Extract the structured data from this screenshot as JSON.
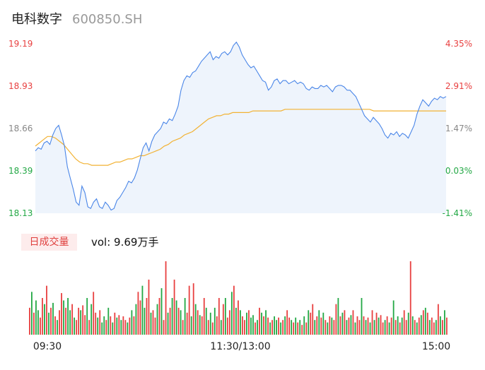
{
  "header": {
    "name": "电科数字",
    "code": "600850.SH"
  },
  "volume_panel": {
    "tab_label": "日成交量",
    "vol_label": "vol: 9.69万手"
  },
  "colors": {
    "price_line": "#4a86e8",
    "avg_line": "#f2b233",
    "up": "#e84040",
    "down": "#23a845",
    "neutral_label": "#888888",
    "area_fill": "#eef4fc"
  },
  "chart_data": [
    {
      "type": "line",
      "title": "",
      "prev_close": 18.445,
      "price_ticks": [
        "19.19",
        "18.93",
        "18.66",
        "18.39",
        "18.13"
      ],
      "pct_ticks": [
        "4.35%",
        "2.91%",
        "1.47%",
        "0.03%",
        "-1.41%"
      ],
      "ylim": [
        18.13,
        19.19
      ],
      "x_labels": [
        "09:30",
        "11:30/13:00",
        "15:00"
      ],
      "series": [
        {
          "values": [
            18.52,
            18.54,
            18.53,
            18.57,
            18.58,
            18.56,
            18.62,
            18.66,
            18.68,
            18.62,
            18.55,
            18.42,
            18.35,
            18.28,
            18.2,
            18.18,
            18.3,
            18.26,
            18.17,
            18.16,
            18.2,
            18.22,
            18.17,
            18.16,
            18.2,
            18.18,
            18.15,
            18.16,
            18.21,
            18.23,
            18.26,
            18.29,
            18.33,
            18.32,
            18.35,
            18.4,
            18.47,
            18.54,
            18.57,
            18.52,
            18.58,
            18.62,
            18.64,
            18.66,
            18.7,
            18.69,
            18.72,
            18.71,
            18.75,
            18.8,
            18.9,
            18.96,
            18.99,
            18.98,
            19.01,
            19.02,
            19.05,
            19.08,
            19.1,
            19.12,
            19.14,
            19.09,
            19.11,
            19.1,
            19.13,
            19.14,
            19.12,
            19.14,
            19.18,
            19.2,
            19.17,
            19.12,
            19.09,
            19.06,
            19.04,
            19.05,
            19.02,
            18.99,
            18.96,
            18.95,
            18.9,
            18.92,
            18.96,
            18.97,
            18.94,
            18.96,
            18.96,
            18.94,
            18.95,
            18.96,
            18.94,
            18.95,
            18.94,
            18.91,
            18.9,
            18.92,
            18.91,
            18.91,
            18.93,
            18.92,
            18.93,
            18.91,
            18.89,
            18.92,
            18.93,
            18.93,
            18.92,
            18.9,
            18.9,
            18.88,
            18.86,
            18.82,
            18.78,
            18.74,
            18.72,
            18.7,
            18.73,
            18.71,
            18.69,
            18.66,
            18.62,
            18.6,
            18.63,
            18.62,
            18.64,
            18.61,
            18.63,
            18.62,
            18.6,
            18.64,
            18.68,
            18.75,
            18.8,
            18.84,
            18.82,
            18.8,
            18.83,
            18.85,
            18.84,
            18.86,
            18.85,
            18.86
          ]
        },
        {
          "values": [
            18.55,
            18.57,
            18.59,
            18.61,
            18.61,
            18.6,
            18.58,
            18.56,
            18.53,
            18.5,
            18.47,
            18.45,
            18.44,
            18.44,
            18.43,
            18.43,
            18.43,
            18.43,
            18.43,
            18.44,
            18.45,
            18.45,
            18.46,
            18.47,
            18.47,
            18.48,
            18.49,
            18.49,
            18.5,
            18.51,
            18.52,
            18.53,
            18.55,
            18.56,
            18.58,
            18.59,
            18.6,
            18.62,
            18.63,
            18.64,
            18.66,
            18.68,
            18.7,
            18.72,
            18.73,
            18.74,
            18.74,
            18.75,
            18.75,
            18.76,
            18.76,
            18.76,
            18.76,
            18.76,
            18.77,
            18.77,
            18.77,
            18.77,
            18.77,
            18.77,
            18.77,
            18.77,
            18.78,
            18.78,
            18.78,
            18.78,
            18.78,
            18.78,
            18.78,
            18.78,
            18.78,
            18.78,
            18.78,
            18.78,
            18.78,
            18.78,
            18.78,
            18.78,
            18.78,
            18.78,
            18.78,
            18.78,
            18.78,
            18.78,
            18.77,
            18.77,
            18.77,
            18.77,
            18.77,
            18.77,
            18.77,
            18.77,
            18.77,
            18.77,
            18.77,
            18.77,
            18.77,
            18.77,
            18.77,
            18.77,
            18.77,
            18.77,
            18.77
          ]
        }
      ]
    },
    {
      "type": "bar",
      "title": "",
      "values": [
        22,
        35,
        18,
        28,
        20,
        14,
        30,
        25,
        40,
        18,
        22,
        26,
        15,
        12,
        20,
        34,
        28,
        22,
        30,
        20,
        25,
        14,
        12,
        22,
        20,
        24,
        16,
        30,
        12,
        25,
        35,
        18,
        14,
        20,
        10,
        15,
        12,
        22,
        15,
        10,
        18,
        14,
        16,
        12,
        15,
        12,
        10,
        14,
        20,
        15,
        25,
        35,
        28,
        40,
        22,
        30,
        45,
        18,
        20,
        14,
        25,
        30,
        38,
        12,
        60,
        18,
        22,
        30,
        45,
        28,
        22,
        20,
        12,
        30,
        18,
        40,
        15,
        42,
        25,
        20,
        16,
        15,
        30,
        22,
        12,
        18,
        10,
        22,
        15,
        30,
        12,
        25,
        30,
        14,
        20,
        35,
        40,
        22,
        28,
        20,
        15,
        12,
        18,
        20,
        14,
        16,
        10,
        12,
        22,
        18,
        15,
        20,
        14,
        10,
        12,
        15,
        12,
        14,
        10,
        12,
        15,
        20,
        14,
        12,
        10,
        14,
        10,
        12,
        8,
        15,
        10,
        20,
        18,
        25,
        12,
        15,
        20,
        14,
        18,
        12,
        10,
        15,
        14,
        12,
        25,
        30,
        15,
        18,
        20,
        12,
        14,
        16,
        20,
        10,
        15,
        12,
        30,
        15,
        12,
        14,
        10,
        20,
        12,
        18,
        14,
        16,
        10,
        12,
        15,
        10,
        14,
        28,
        12,
        15,
        10,
        14,
        20,
        12,
        18,
        60,
        15,
        12,
        10,
        14,
        16,
        20,
        22,
        18,
        12,
        14,
        10,
        12,
        25,
        15,
        12,
        20,
        14
      ],
      "up_flags": [
        1,
        0,
        1,
        0,
        0,
        1,
        1,
        0,
        1,
        0,
        1,
        0,
        1,
        0,
        1,
        1,
        0,
        1,
        0,
        0,
        1,
        0,
        1,
        1,
        0,
        1,
        1,
        0,
        1,
        0,
        1,
        1,
        0,
        1,
        0,
        0,
        1,
        0,
        1,
        0,
        1,
        0,
        1,
        0,
        1,
        1,
        0,
        1,
        0,
        1,
        0,
        1,
        1,
        0,
        0,
        1,
        1,
        0,
        1,
        1,
        0,
        1,
        0,
        1,
        1,
        0,
        1,
        0,
        1,
        0,
        1,
        0,
        1,
        0,
        1,
        1,
        0,
        1,
        0,
        1,
        0,
        1,
        1,
        0,
        1,
        0,
        1,
        0,
        1,
        1,
        0,
        1,
        0,
        1,
        1,
        0,
        1,
        0,
        1,
        0,
        1,
        1,
        0,
        1,
        0,
        0,
        1,
        0,
        1,
        0,
        1,
        0,
        1,
        0,
        1,
        0,
        0,
        1,
        0,
        1,
        0,
        1,
        1,
        0,
        1,
        0,
        1,
        0,
        1,
        0,
        1,
        0,
        1,
        1,
        0,
        1,
        0,
        1,
        0,
        1,
        0,
        1,
        0,
        1,
        1,
        0,
        1,
        0,
        1,
        0,
        1,
        0,
        1,
        0,
        1,
        1,
        0,
        1,
        0,
        1,
        0,
        1,
        0,
        1,
        0,
        1,
        1,
        0,
        1,
        0,
        1,
        0,
        1,
        0,
        1,
        0,
        1,
        1,
        0,
        1,
        0,
        1,
        0,
        1,
        0,
        1,
        0,
        1,
        0,
        1,
        1,
        0,
        1,
        0,
        1,
        0,
        1,
        1,
        0
      ]
    }
  ]
}
